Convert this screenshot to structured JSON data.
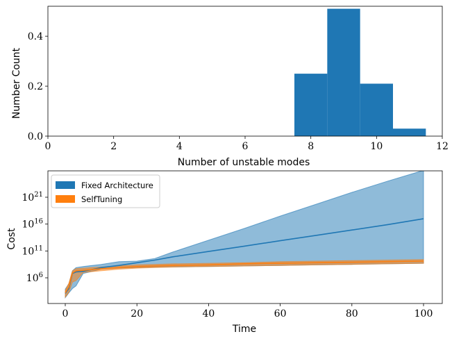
{
  "chart_data": [
    {
      "type": "bar",
      "xlabel": "Number of unstable modes",
      "ylabel": "Number Count",
      "xlim": [
        0,
        12
      ],
      "ylim": [
        0,
        0.52
      ],
      "xticks": [
        "0",
        "2",
        "4",
        "6",
        "8",
        "10",
        "12"
      ],
      "yticks": [
        "0.0",
        "0.2",
        "0.4"
      ],
      "bin_width": 1,
      "bins": [
        {
          "center": 8,
          "value": 0.25
        },
        {
          "center": 9,
          "value": 0.51
        },
        {
          "center": 10,
          "value": 0.21
        },
        {
          "center": 11,
          "value": 0.03
        }
      ],
      "color": "#1f77b4"
    },
    {
      "type": "area",
      "xlabel": "Time",
      "ylabel": "Cost",
      "xlim": [
        0,
        100
      ],
      "ylim_log10": [
        1,
        25
      ],
      "log_y": true,
      "xticks": [
        "0",
        "20",
        "40",
        "60",
        "80",
        "100"
      ],
      "yticks": [
        {
          "base": "10",
          "exp": "6"
        },
        {
          "base": "10",
          "exp": "11"
        },
        {
          "base": "10",
          "exp": "16"
        },
        {
          "base": "10",
          "exp": "21"
        }
      ],
      "legend_position": "top-left",
      "series": [
        {
          "name": "Fixed Architecture",
          "color": "#1f77b4",
          "x": [
            0,
            1,
            2,
            3,
            5,
            10,
            15,
            20,
            25,
            30,
            40,
            50,
            60,
            70,
            80,
            90,
            100
          ],
          "mean": [
            3.1,
            4.0,
            6.8,
            7.1,
            7.2,
            7.9,
            8.3,
            8.8,
            9.3,
            9.9,
            10.9,
            11.9,
            12.9,
            13.9,
            14.9,
            15.9,
            17.0
          ],
          "lower": [
            2.3,
            3.2,
            4.0,
            4.5,
            6.8,
            7.6,
            7.8,
            7.9,
            8.0,
            8.0,
            8.1,
            8.2,
            8.3,
            8.4,
            8.5,
            8.6,
            8.7
          ],
          "upper": [
            3.9,
            4.9,
            7.3,
            7.9,
            8.1,
            8.5,
            9.0,
            9.1,
            9.6,
            10.8,
            13.0,
            15.2,
            17.5,
            19.7,
            21.9,
            24.0,
            26.0
          ]
        },
        {
          "name": "SelfTuning",
          "color": "#ff7f0e",
          "x": [
            0,
            1,
            2,
            3,
            5,
            10,
            15,
            20,
            25,
            30,
            40,
            50,
            60,
            70,
            80,
            90,
            100
          ],
          "mean": [
            3.2,
            4.3,
            6.9,
            7.3,
            7.4,
            7.7,
            7.9,
            8.1,
            8.2,
            8.3,
            8.4,
            8.6,
            8.7,
            8.8,
            8.9,
            9.0,
            9.1
          ],
          "lower": [
            2.4,
            3.3,
            5.2,
            5.5,
            7.0,
            7.3,
            7.6,
            7.8,
            7.9,
            8.0,
            8.1,
            8.2,
            8.3,
            8.4,
            8.5,
            8.6,
            8.7
          ],
          "upper": [
            3.7,
            5.0,
            7.3,
            7.7,
            7.8,
            8.0,
            8.2,
            8.4,
            8.5,
            8.6,
            8.7,
            8.8,
            9.0,
            9.1,
            9.2,
            9.3,
            9.4
          ]
        }
      ]
    }
  ]
}
